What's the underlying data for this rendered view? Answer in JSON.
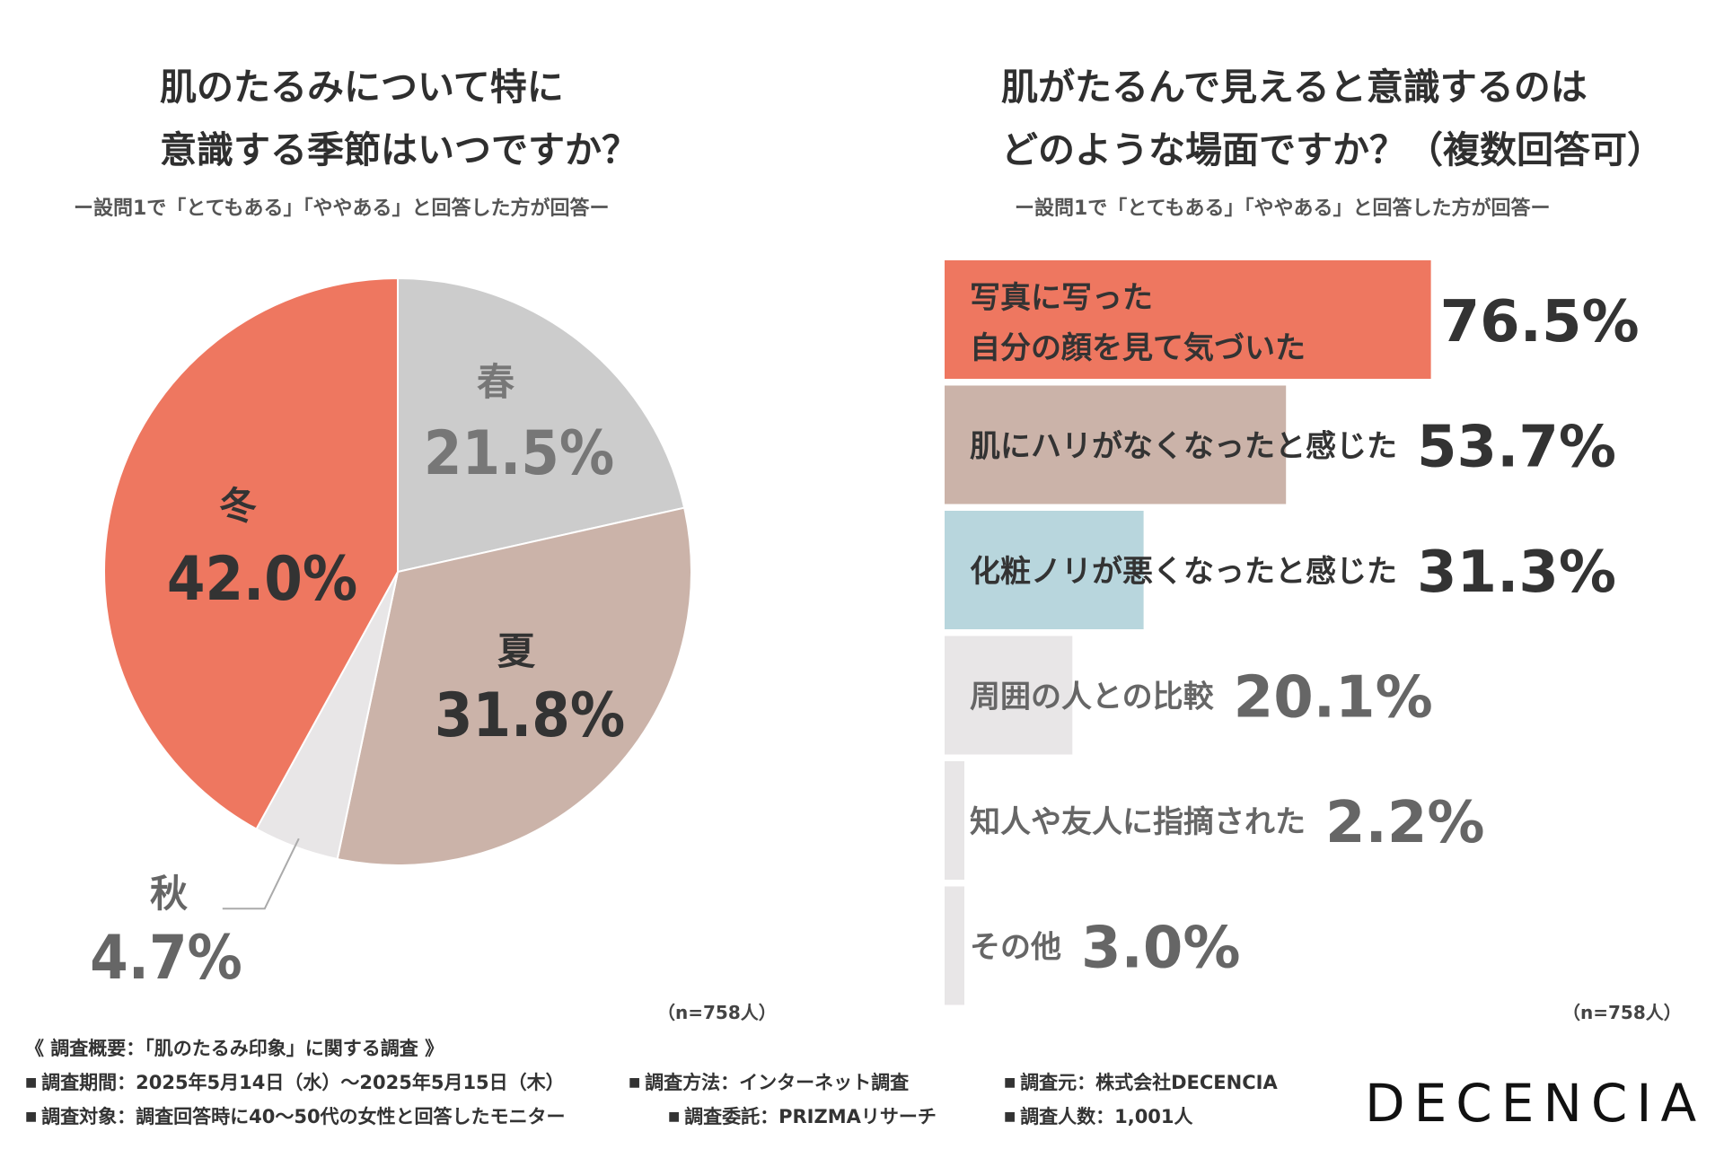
{
  "left_chart": {
    "title_line1": "肌のたるみについて特に",
    "title_line2": "意識する季節はいつですか？",
    "subtitle": "ー設問1で「とてもある」「ややある」と回答した方が回答ー",
    "n_note": "（n=758人）"
  },
  "right_chart": {
    "title_line1": "肌がたるんで見えると意識するのは",
    "title_line2": "どのような場面ですか？（複数回答可）",
    "subtitle": "ー設問1で「とてもある」「ややある」と回答した方が回答ー",
    "n_note": "（n=758人）"
  },
  "chart_data": [
    {
      "type": "pie",
      "title": "肌のたるみについて特に意識する季節はいつですか？",
      "slices": [
        {
          "label": "春",
          "value": 21.5,
          "display": "21.5%",
          "color": "#cccccc",
          "text_color": "#777777"
        },
        {
          "label": "夏",
          "value": 31.8,
          "display": "31.8%",
          "color": "#cbb3a9",
          "text_color": "#333333"
        },
        {
          "label": "秋",
          "value": 4.7,
          "display": "4.7%",
          "color": "#e8e6e7",
          "text_color": "#666666"
        },
        {
          "label": "冬",
          "value": 42.0,
          "display": "42.0%",
          "color": "#ee7760",
          "text_color": "#333333"
        }
      ]
    },
    {
      "type": "bar",
      "orientation": "horizontal",
      "title": "肌がたるんで見えると意識するのはどのような場面ですか？（複数回答可）",
      "xlim": [
        0,
        100
      ],
      "bars": [
        {
          "label_lines": [
            "写真に写った",
            "自分の顔を見て気づいた"
          ],
          "value": 76.5,
          "display": "76.5%",
          "color": "#ee7760",
          "text_color": "#333333"
        },
        {
          "label_lines": [
            "肌にハリがなくなったと感じた"
          ],
          "value": 53.7,
          "display": "53.7%",
          "color": "#cbb3a9",
          "text_color": "#333333"
        },
        {
          "label_lines": [
            "化粧ノリが悪くなったと感じた"
          ],
          "value": 31.3,
          "display": "31.3%",
          "color": "#b8d6dd",
          "text_color": "#333333"
        },
        {
          "label_lines": [
            "周囲の人との比較"
          ],
          "value": 20.1,
          "display": "20.1%",
          "color": "#e8e6e7",
          "text_color": "#666666"
        },
        {
          "label_lines": [
            "知人や友人に指摘された"
          ],
          "value": 2.2,
          "display": "2.2%",
          "color": "#e8e6e7",
          "text_color": "#666666"
        },
        {
          "label_lines": [
            "その他"
          ],
          "value": 3.0,
          "display": "3.0%",
          "color": "#e8e6e7",
          "text_color": "#666666"
        }
      ]
    }
  ],
  "footer": {
    "heading": "《 調査概要：「肌のたるみ印象」に関する調査 》",
    "period": "調査期間：2025年5月14日（水）〜2025年5月15日（木）",
    "method": "調査方法：インターネット調査",
    "source": "調査元：株式会社DECENCIA",
    "target": "調査対象：調査回答時に40〜50代の女性と回答したモニター",
    "commission": "調査委託：PRIZMAリサーチ",
    "count": "調査人数：1,001人"
  },
  "logo": "DECENCIA"
}
